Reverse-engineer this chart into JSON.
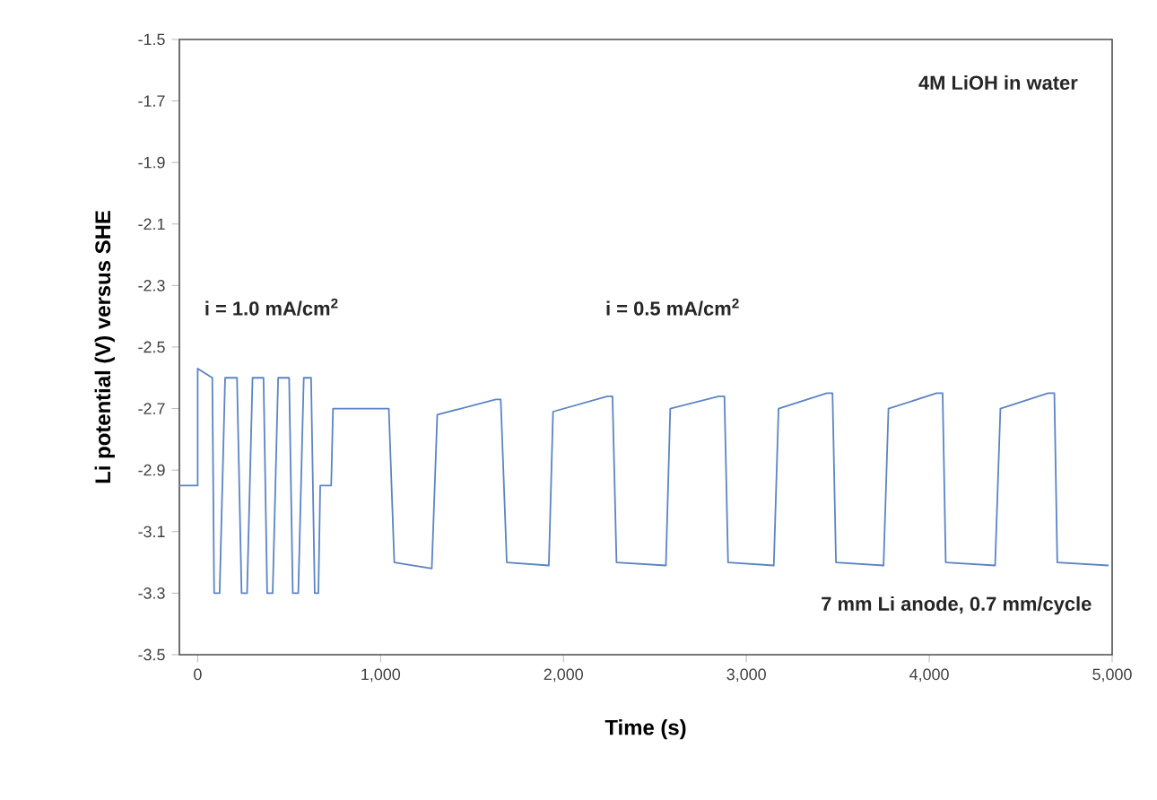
{
  "chart_data": {
    "type": "line",
    "xlabel": "Time (s)",
    "ylabel": "Li potential (V) versus SHE",
    "annotations": [
      "4M LiOH in water",
      "i = 1.0 mA/cm$^{2}$",
      "i = 0.5 mA/cm$^{2}$",
      "7 mm Li anode, 0.7 mm/cycle"
    ],
    "xlim": [
      -100,
      5000
    ],
    "ylim": [
      -3.5,
      -1.5
    ],
    "xticks": [
      0,
      {
        "value": 1000,
        "label": "1,000"
      },
      {
        "value": 2000,
        "label": "2,000"
      },
      {
        "value": 3000,
        "label": "3,000"
      },
      {
        "value": 4000,
        "label": "4,000"
      },
      {
        "value": 5000,
        "label": "5,000"
      }
    ],
    "yticks": [
      -3.5,
      -3.3,
      -3.1,
      -2.9,
      -2.7,
      -2.5,
      -2.3,
      -2.1,
      -1.9,
      -1.7,
      -1.5
    ],
    "marker": "none",
    "line_style": "solid",
    "series": [
      {
        "color": "#5b84c4",
        "x": [
          -100,
          0,
          0,
          80,
          90,
          120,
          150,
          215,
          240,
          270,
          300,
          360,
          380,
          410,
          440,
          500,
          520,
          550,
          580,
          620,
          640,
          660,
          670,
          730,
          740,
          1045,
          1075,
          1280,
          1310,
          1630,
          1657,
          1690,
          1920,
          1943,
          2240,
          2268,
          2290,
          2560,
          2584,
          2850,
          2880,
          2900,
          3150,
          3176,
          3440,
          3471,
          3490,
          3750,
          3777,
          4040,
          4073,
          4090,
          4360,
          4389,
          4650,
          4684,
          4700,
          4980
        ],
        "values": [
          -2.95,
          -2.95,
          -2.57,
          -2.6,
          -3.3,
          -3.3,
          -2.6,
          -2.6,
          -3.3,
          -3.3,
          -2.6,
          -2.6,
          -3.3,
          -3.3,
          -2.6,
          -2.6,
          -3.3,
          -3.3,
          -2.6,
          -2.6,
          -3.3,
          -3.3,
          -2.95,
          -2.95,
          -2.7,
          -2.7,
          -3.2,
          -3.22,
          -2.72,
          -2.67,
          -2.67,
          -3.2,
          -3.21,
          -2.71,
          -2.66,
          -2.66,
          -3.2,
          -3.21,
          -2.7,
          -2.66,
          -2.66,
          -3.2,
          -3.21,
          -2.7,
          -2.65,
          -2.65,
          -3.2,
          -3.21,
          -2.7,
          -2.65,
          -2.65,
          -3.2,
          -3.21,
          -2.7,
          -2.65,
          -2.65,
          -3.2,
          -3.21
        ]
      }
    ]
  }
}
